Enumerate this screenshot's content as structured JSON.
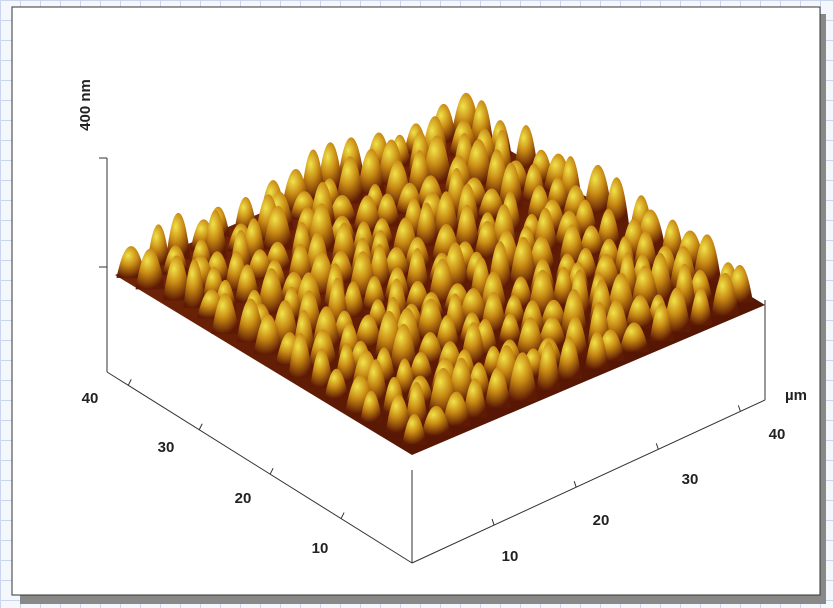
{
  "axes": {
    "z_label": "400 nm",
    "unit_label": "µm",
    "left_ticks": [
      "40",
      "30",
      "20",
      "10"
    ],
    "right_ticks": [
      "10",
      "20",
      "30",
      "40"
    ]
  }
}
